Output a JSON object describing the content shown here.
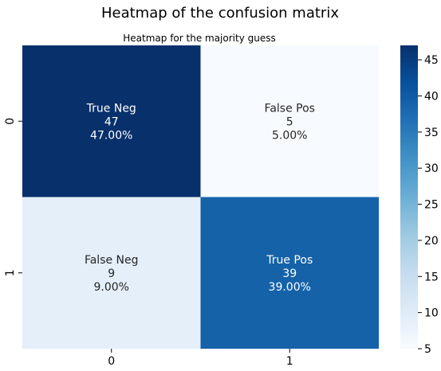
{
  "chart_data": {
    "type": "heatmap",
    "title": "Heatmap of the confusion matrix",
    "subtitle": "Heatmap for the majority guess",
    "xlabel": "",
    "ylabel": "",
    "x_categories": [
      "0",
      "1"
    ],
    "y_categories": [
      "0",
      "1"
    ],
    "values": [
      [
        47,
        5
      ],
      [
        9,
        39
      ]
    ],
    "cells": [
      [
        {
          "label": "True Neg",
          "count": "47",
          "percent": "47.00%"
        },
        {
          "label": "False Pos",
          "count": "5",
          "percent": "5.00%"
        }
      ],
      [
        {
          "label": "False Neg",
          "count": "9",
          "percent": "9.00%"
        },
        {
          "label": "True Pos",
          "count": "39",
          "percent": "39.00%"
        }
      ]
    ],
    "colormap": "Blues",
    "colorbar": {
      "range": [
        5,
        47
      ],
      "ticks": [
        "5",
        "10",
        "15",
        "20",
        "25",
        "30",
        "35",
        "40",
        "45"
      ]
    },
    "grid": false,
    "legend": "colorbar-right"
  }
}
